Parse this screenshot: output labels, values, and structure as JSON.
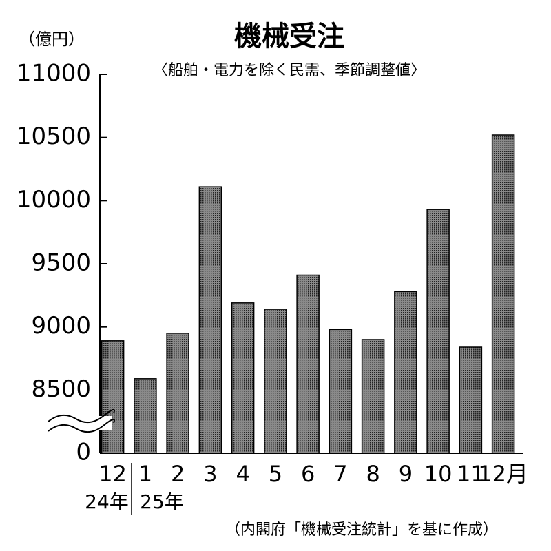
{
  "chart_data": {
    "type": "bar",
    "title": "機械受注",
    "subtitle": "〈船舶・電力を除く民需、季節調整値〉",
    "unit": "（億円）",
    "source": "（内閣府「機械受注統計」を基に作成）",
    "categories": [
      "12",
      "1",
      "2",
      "3",
      "4",
      "5",
      "6",
      "7",
      "8",
      "9",
      "10",
      "11",
      "12月"
    ],
    "year_labels": [
      "24年",
      "25年"
    ],
    "values": [
      8890,
      8590,
      8950,
      10110,
      9190,
      9140,
      9410,
      8980,
      8900,
      9280,
      9930,
      8840,
      10520
    ],
    "color": "#6e6e6e",
    "ylim": [
      8000,
      11000
    ],
    "yticks": [
      0,
      8500,
      9000,
      9500,
      10000,
      10500,
      11000
    ],
    "axis_break": true,
    "grid": false
  }
}
